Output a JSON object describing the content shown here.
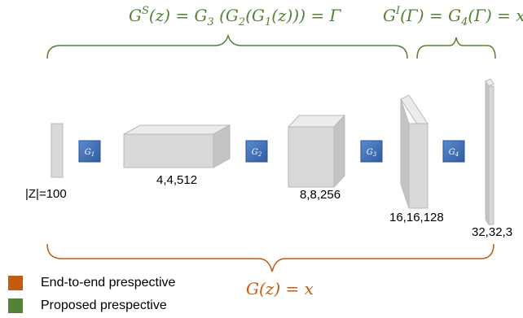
{
  "equations": {
    "top_left": "G^S(z) = G_3(G_2(G_1(z))) = Γ",
    "top_right": "G^I(Γ) = G_4(Γ) = x",
    "bottom": "G(z) = x"
  },
  "generators": [
    "G1",
    "G2",
    "G3",
    "G4"
  ],
  "shape_labels": {
    "z": "|Z|=100",
    "l1": "4,4,512",
    "l2": "8,8,256",
    "l3": "16,16,128",
    "l4": "32,32,3"
  },
  "legend": [
    {
      "label": "End-to-end prespective",
      "color": "#c55a11"
    },
    {
      "label": "Proposed prespective",
      "color": "#548235"
    }
  ],
  "colors": {
    "green": "#548235",
    "orange": "#c55a11",
    "block_fill": "#3f6fb4",
    "box_face": "#d9d9d9"
  }
}
